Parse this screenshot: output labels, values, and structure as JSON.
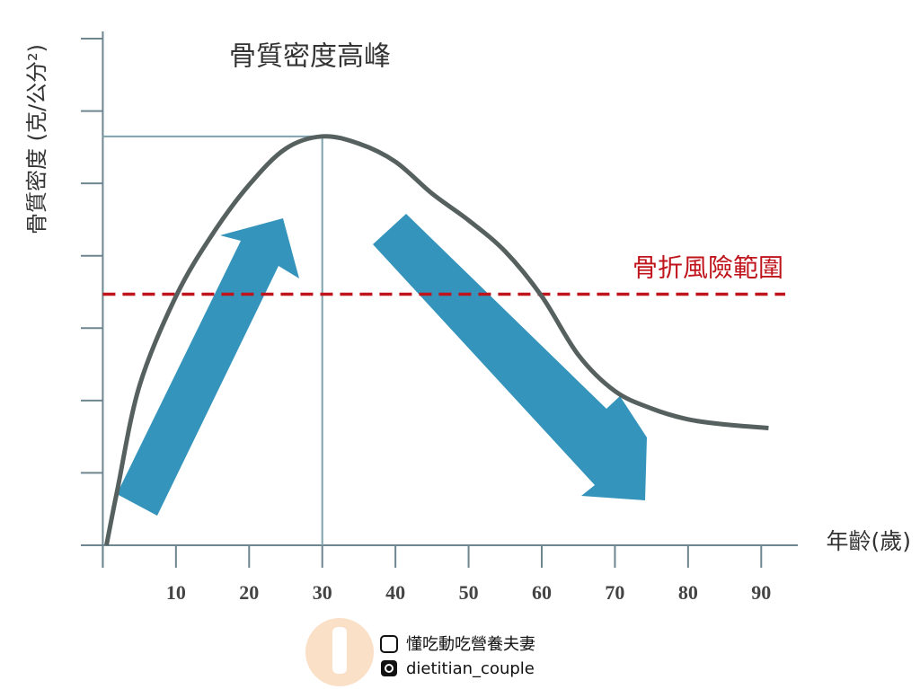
{
  "chart_data": {
    "type": "line",
    "title": "骨質密度高峰",
    "x_label": "年齡(歲)",
    "y_label": "骨質密度 (克/公分²)",
    "x": [
      0.5,
      2,
      5,
      10,
      15,
      20,
      25,
      30,
      35,
      40,
      45,
      50,
      55,
      60,
      65,
      70,
      75,
      80,
      85,
      91
    ],
    "series": [
      {
        "color": "#56615f",
        "values": [
          0,
          0.77,
          2.2,
          3.44,
          4.3,
          4.98,
          5.48,
          5.65,
          5.55,
          5.3,
          4.86,
          4.49,
          4.06,
          3.44,
          2.63,
          2.13,
          1.89,
          1.74,
          1.67,
          1.62
        ]
      }
    ],
    "xlim": [
      -3,
      95
    ],
    "xticks": [
      10,
      20,
      30,
      40,
      50,
      60,
      70,
      80,
      90
    ],
    "ylim": [
      0,
      7.1
    ],
    "yticks": [
      0,
      1,
      2,
      3,
      4,
      5,
      6,
      7
    ],
    "peak": {
      "x": 30,
      "y": 5.65,
      "color": "#7fa3ad"
    },
    "threshold": {
      "value": 3.47,
      "label": "骨折風險範圍",
      "color": "#c0141c"
    }
  },
  "footer": {
    "facebook": "懂吃動吃營養夫妻",
    "instagram": "dietitian_couple"
  }
}
